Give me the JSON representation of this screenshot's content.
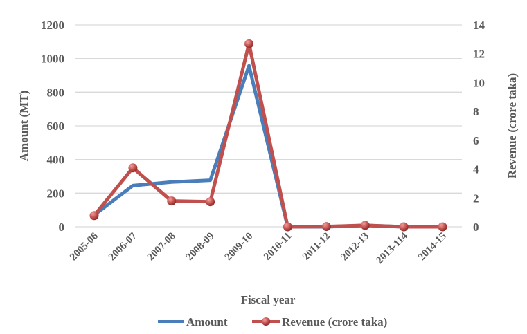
{
  "chart_data": {
    "type": "line",
    "xlabel": "Fiscal year",
    "ylabel_left": "Amount (MT)",
    "ylabel_right": "Revenue (crore taka)",
    "categories": [
      "2005-06",
      "2006-07",
      "2007-08",
      "2008-09",
      "2009-10",
      "2010-11",
      "2011-12",
      "2012-13",
      "2013-114",
      "2014-15"
    ],
    "ylim_left": [
      0,
      1200
    ],
    "yticks_left": [
      0,
      200,
      400,
      600,
      800,
      1000,
      1200
    ],
    "ylim_right": [
      0,
      14
    ],
    "yticks_right": [
      0,
      2,
      4,
      6,
      8,
      10,
      12,
      14
    ],
    "grid": true,
    "legend_position": "bottom",
    "series": [
      {
        "name": "Amount",
        "axis": "left",
        "color": "#4a7ebb",
        "marker": false,
        "values": [
          70,
          245,
          266,
          277,
          957,
          0,
          0,
          8,
          0,
          0
        ]
      },
      {
        "name": "Revenue (crore taka)",
        "axis": "right",
        "color": "#c0504d",
        "marker": true,
        "values": [
          0.78,
          4.09,
          1.79,
          1.74,
          12.69,
          0,
          0.02,
          0.1,
          0,
          0
        ]
      }
    ]
  }
}
